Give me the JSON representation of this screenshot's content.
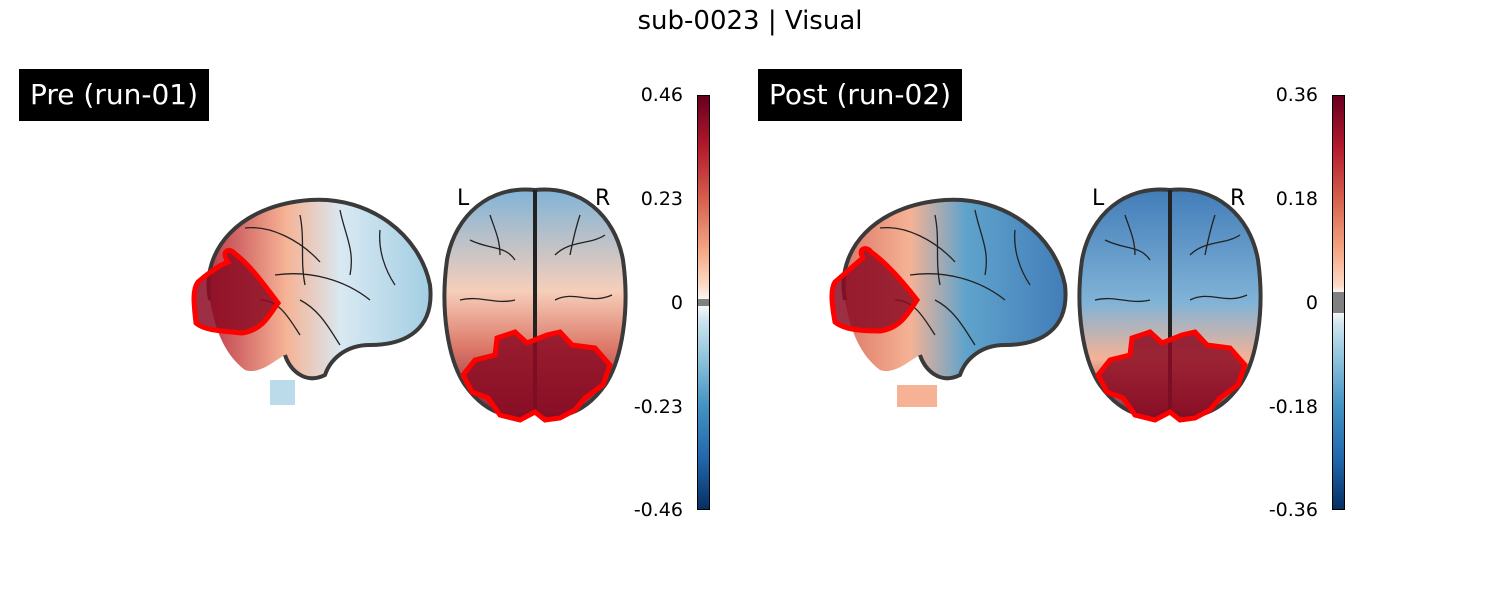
{
  "title": "sub-0023 | Visual",
  "panels": [
    {
      "label": "Pre (run-01)",
      "orientation": {
        "left": "L",
        "right": "R"
      },
      "colorbar": {
        "max": "0.46",
        "mid_hi": "0.23",
        "zero": "0",
        "mid_lo": "-0.23",
        "min": "-0.46"
      }
    },
    {
      "label": "Post (run-02)",
      "orientation": {
        "left": "L",
        "right": "R"
      },
      "colorbar": {
        "max": "0.36",
        "mid_hi": "0.18",
        "zero": "0",
        "mid_lo": "-0.18",
        "min": "-0.36"
      }
    }
  ],
  "colors": {
    "positive": "#8b0a22",
    "negative": "#2166ac",
    "roi_outline": "#ff0000",
    "brain_outline": "#3a3a3a",
    "zero_band": "#808080"
  }
}
